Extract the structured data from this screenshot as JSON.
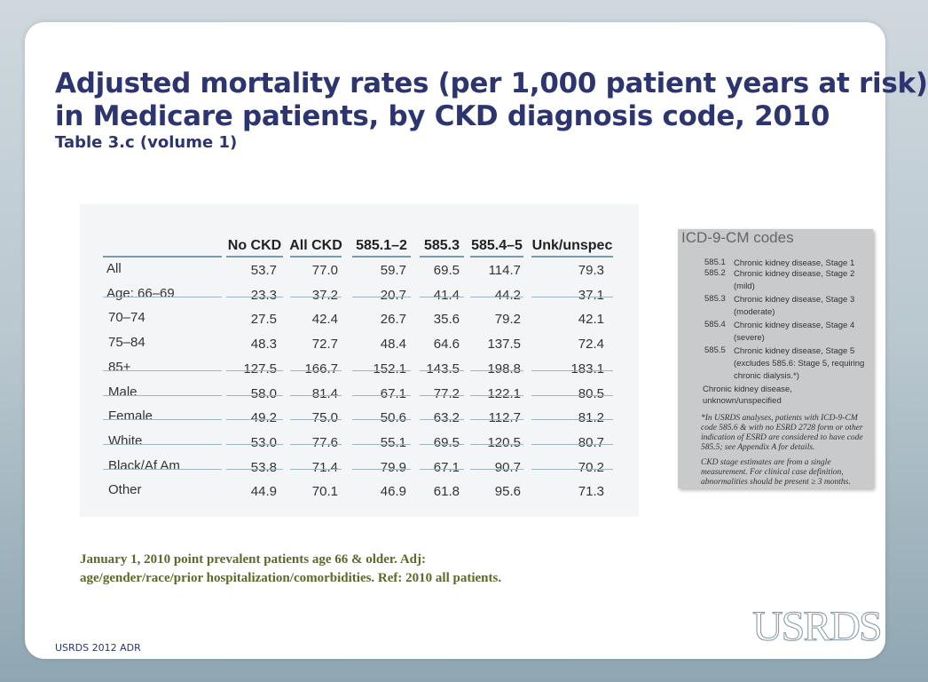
{
  "header": {
    "title": [
      "Adjusted mortality rates (per 1,000 patient years at risk)",
      "in Medicare patients, by CKD diagnosis code, 2010"
    ],
    "subtitle": "Table 3.c (volume 1)"
  },
  "table": {
    "columns": [
      "No CKD",
      "All CKD",
      "585.1–2",
      "585.3",
      "585.4–5",
      "Unk/unspec"
    ],
    "rows": [
      [
        "All",
        "53.7",
        "77.0",
        "59.7",
        "69.5",
        "114.7",
        "79.3"
      ],
      [
        "Age: 66–69",
        "23.3",
        "37.2",
        "20.7",
        "41.4",
        "44.2",
        "37.1"
      ],
      [
        "70–74",
        "27.5",
        "42.4",
        "26.7",
        "35.6",
        "79.2",
        "42.1"
      ],
      [
        "75–84",
        "48.3",
        "72.7",
        "48.4",
        "64.6",
        "137.5",
        "72.4"
      ],
      [
        "85+",
        "127.5",
        "166.7",
        "152.1",
        "143.5",
        "198.8",
        "183.1"
      ],
      [
        "Male",
        "58.0",
        "81.4",
        "67.1",
        "77.2",
        "122.1",
        "80.5"
      ],
      [
        "Female",
        "49.2",
        "75.0",
        "50.6",
        "63.2",
        "112.7",
        "81.2"
      ],
      [
        "White",
        "53.0",
        "77.6",
        "55.1",
        "69.5",
        "120.5",
        "80.7"
      ],
      [
        "Black/Af Am",
        "53.8",
        "71.4",
        "79.9",
        "67.1",
        "90.7",
        "70.2"
      ],
      [
        "Other",
        "44.9",
        "70.1",
        "46.9",
        "61.8",
        "95.6",
        "71.3"
      ]
    ]
  },
  "sidebox": {
    "title": "ICD-9-CM codes",
    "codes": [
      {
        "code": "585.1",
        "desc": "Chronic kidney disease, Stage 1"
      },
      {
        "code": "585.2",
        "desc": "Chronic kidney disease, Stage 2 (mild)"
      },
      {
        "code": "585.3",
        "desc": "Chronic kidney disease, Stage 3 (moderate)"
      },
      {
        "code": "585.4",
        "desc": "Chronic kidney disease, Stage 4 (severe)"
      },
      {
        "code": "585.5",
        "desc": "Chronic kidney disease, Stage 5 (excludes 585.6: Stage 5, requiring chronic dialysis.*)"
      }
    ],
    "other": "Chronic kidney disease, unknown/unspecified",
    "notes": [
      "*In USRDS analyses, patients with ICD-9-CM code 585.6 & with no ESRD 2728 form or other indication of ESRD are considered to have code 585.5; see Appendix A for details.",
      "CKD stage estimates are from a single measurement. For clinical case definition, abnormalities should be present ≥ 3 months."
    ]
  },
  "footnote": [
    "January 1, 2010 point prevalent patients age 66 & older. Adj:",
    "age/gender/race/prior hospitalization/comorbidities. Ref: 2010 all patients."
  ],
  "footer": "USRDS 2012 ADR",
  "logo": "USRDS"
}
